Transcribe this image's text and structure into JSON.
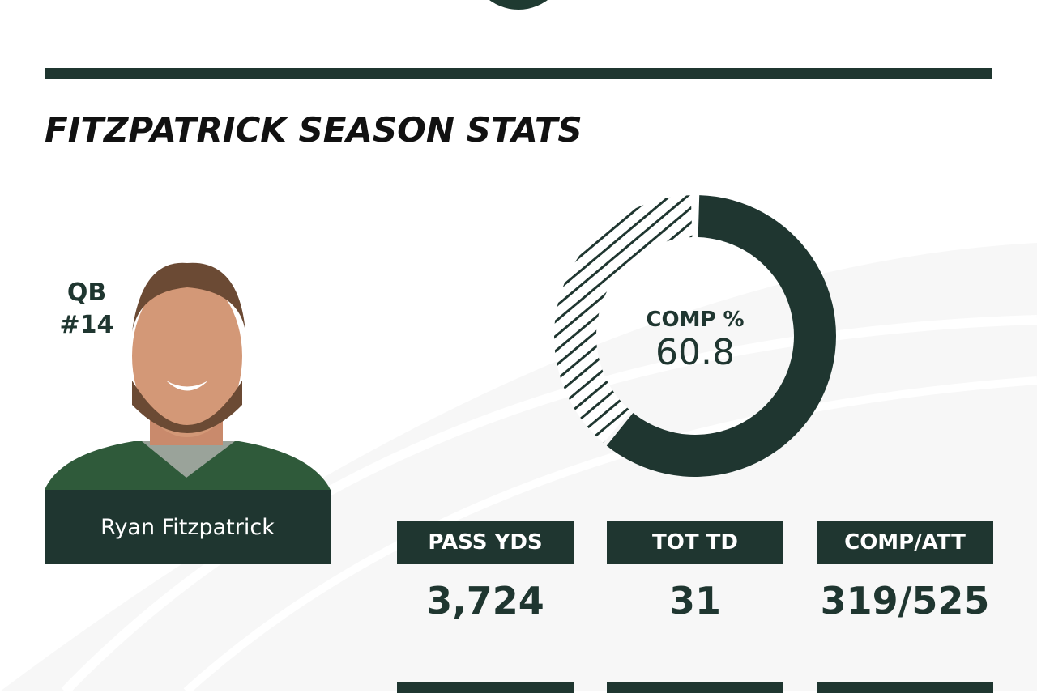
{
  "header": {
    "title": "FITZPATRICK SEASON STATS"
  },
  "player": {
    "position": "QB",
    "number": "#14",
    "name": "Ryan Fitzpatrick"
  },
  "donut": {
    "label": "COMP %",
    "value": "60.8",
    "percent": 60.8
  },
  "stats": [
    {
      "label": "PASS YDS",
      "value": "3,724"
    },
    {
      "label": "TOT TD",
      "value": "31"
    },
    {
      "label": "COMP/ATT",
      "value": "319/525"
    }
  ],
  "colors": {
    "primary": "#1f3630",
    "background": "#fafafa"
  }
}
